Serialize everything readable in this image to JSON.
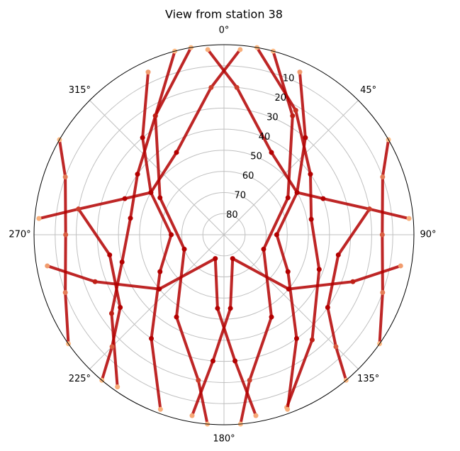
{
  "chart_data": {
    "type": "polar_scatter",
    "title": "View from station 38",
    "theta_direction": "clockwise",
    "theta_zero": "N",
    "rlim": [
      90,
      0
    ],
    "rticks": [
      10,
      20,
      30,
      40,
      50,
      60,
      70,
      80
    ],
    "rlabel_position": 22.5,
    "thetaticks": [
      {
        "value": 0,
        "label": "0°"
      },
      {
        "value": 45,
        "label": "45°"
      },
      {
        "value": 90,
        "label": "90°"
      },
      {
        "value": 135,
        "label": "135°"
      },
      {
        "value": 180,
        "label": "180°"
      },
      {
        "value": 225,
        "label": "225°"
      },
      {
        "value": 270,
        "label": "270°"
      },
      {
        "value": 315,
        "label": "315°"
      }
    ],
    "grid": true,
    "color_range": [
      "#fdbb84",
      "#b30000"
    ],
    "clim": [
      0,
      30
    ],
    "series": [
      {
        "theta": [
          350,
          330,
          305,
          280,
          255,
          235,
          215
        ],
        "r": [
          0,
          25,
          40,
          45,
          40,
          25,
          2
        ]
      },
      {
        "theta": [
          10,
          30,
          55,
          80,
          110,
          140,
          160
        ],
        "r": [
          0,
          22,
          40,
          48,
          42,
          25,
          3
        ]
      },
      {
        "theta": [
          200,
          215,
          240,
          270,
          300,
          320,
          335
        ],
        "r": [
          2,
          30,
          55,
          65,
          50,
          30,
          5
        ]
      },
      {
        "theta": [
          160,
          145,
          120,
          90,
          60,
          40,
          25
        ],
        "r": [
          2,
          30,
          55,
          65,
          50,
          30,
          5
        ]
      },
      {
        "theta": [
          185,
          190,
          210,
          250,
          300,
          330,
          345
        ],
        "r": [
          0,
          20,
          45,
          70,
          55,
          25,
          0
        ]
      },
      {
        "theta": [
          175,
          170,
          150,
          110,
          60,
          30,
          15
        ],
        "r": [
          0,
          20,
          45,
          70,
          55,
          25,
          0
        ]
      },
      {
        "theta": [
          190,
          185,
          175,
          160,
          130,
          110,
          100
        ],
        "r": [
          3,
          30,
          55,
          78,
          50,
          25,
          5
        ]
      },
      {
        "theta": [
          170,
          175,
          185,
          200,
          230,
          250,
          260
        ],
        "r": [
          3,
          30,
          55,
          78,
          50,
          25,
          5
        ]
      },
      {
        "theta": [
          5,
          355,
          330,
          300,
          290,
          280,
          275
        ],
        "r": [
          2,
          20,
          45,
          50,
          40,
          20,
          2
        ]
      },
      {
        "theta": [
          355,
          5,
          30,
          60,
          70,
          80,
          85
        ],
        "r": [
          2,
          20,
          45,
          50,
          40,
          20,
          2
        ]
      },
      {
        "theta": [
          220,
          225,
          235,
          260,
          280
        ],
        "r": [
          0,
          15,
          30,
          35,
          20
        ]
      },
      {
        "theta": [
          140,
          135,
          125,
          100,
          80
        ],
        "r": [
          0,
          15,
          30,
          35,
          20
        ]
      },
      {
        "theta": [
          300,
          290,
          270,
          250,
          235
        ],
        "r": [
          0,
          10,
          15,
          10,
          0
        ]
      },
      {
        "theta": [
          60,
          70,
          90,
          110,
          125
        ],
        "r": [
          0,
          10,
          15,
          10,
          0
        ]
      }
    ]
  }
}
